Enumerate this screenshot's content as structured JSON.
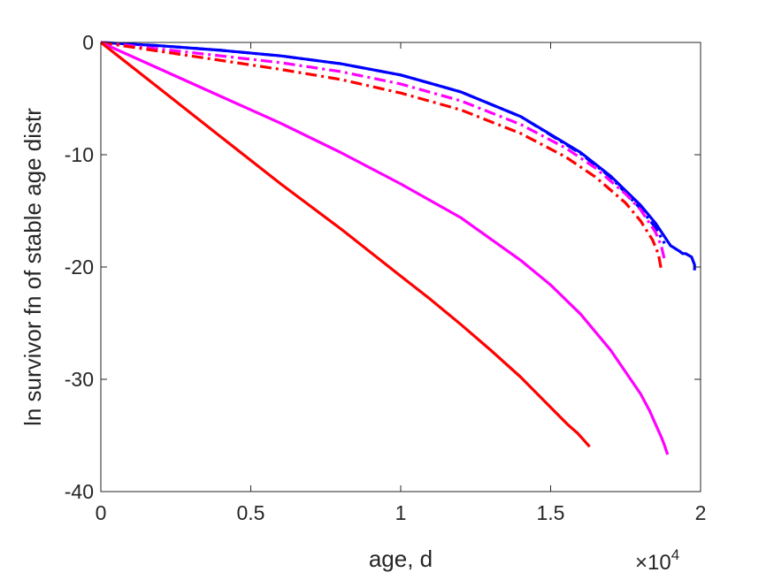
{
  "chart_data": {
    "type": "line",
    "title": "",
    "xlabel": "age, d",
    "ylabel": "ln survivor fn of stable age distr",
    "x_exponent_label": {
      "base": "×10",
      "power": "4"
    },
    "xlim": [
      0,
      20000
    ],
    "ylim": [
      -40,
      0
    ],
    "xticks": [
      0,
      5000,
      10000,
      15000,
      20000
    ],
    "xtick_labels": [
      "0",
      "0.5",
      "1",
      "1.5",
      "2"
    ],
    "yticks": [
      0,
      -10,
      -20,
      -30,
      -40
    ],
    "ytick_labels": [
      "0",
      "-10",
      "-20",
      "-30",
      "-40"
    ],
    "grid": false,
    "series": [
      {
        "color": "#0000ff",
        "style": "solid",
        "x": [
          0,
          2000,
          4000,
          6000,
          8000,
          10000,
          12000,
          14000,
          16000,
          17000,
          18000,
          18500,
          19000,
          19300,
          19400,
          19500,
          19700,
          19800,
          19800
        ],
        "y": [
          0,
          -0.3,
          -0.7,
          -1.2,
          -1.9,
          -2.9,
          -4.4,
          -6.6,
          -9.8,
          -11.9,
          -14.5,
          -16.1,
          -18.1,
          -18.6,
          -18.8,
          -18.8,
          -19.1,
          -19.8,
          -20.3
        ]
      },
      {
        "color": "#0000ff",
        "style": "dashdot",
        "x": [
          0,
          2000,
          4000,
          6000,
          8000,
          10000,
          12000,
          14000,
          16000,
          17000,
          18000,
          18500,
          18800
        ],
        "y": [
          0,
          -0.3,
          -0.7,
          -1.2,
          -1.9,
          -2.9,
          -4.4,
          -6.6,
          -9.9,
          -12.0,
          -14.8,
          -16.5,
          -17.9
        ]
      },
      {
        "color": "#ff00ff",
        "style": "dashdot",
        "x": [
          0,
          2000,
          4000,
          6000,
          8000,
          10000,
          12000,
          14000,
          15500,
          16500,
          17500,
          18000,
          18500,
          18700,
          18800
        ],
        "y": [
          0,
          -0.6,
          -1.2,
          -1.8,
          -2.6,
          -3.7,
          -5.2,
          -7.3,
          -9.4,
          -11.2,
          -13.5,
          -14.9,
          -16.9,
          -18.2,
          -19.4
        ]
      },
      {
        "color": "#ff0000",
        "style": "dashdot",
        "x": [
          0,
          2000,
          4000,
          6000,
          8000,
          10000,
          12000,
          14000,
          15500,
          16500,
          17500,
          18000,
          18400,
          18600,
          18700
        ],
        "y": [
          0,
          -0.8,
          -1.6,
          -2.4,
          -3.3,
          -4.5,
          -6.0,
          -8.1,
          -10.2,
          -12.0,
          -14.3,
          -15.9,
          -17.6,
          -18.9,
          -20.4
        ]
      },
      {
        "color": "#ff00ff",
        "style": "solid",
        "x": [
          0,
          2000,
          4000,
          6000,
          8000,
          10000,
          12000,
          14000,
          15000,
          16000,
          17000,
          18000,
          18300,
          18500,
          18700,
          18800,
          18900
        ],
        "y": [
          0,
          -2.4,
          -4.8,
          -7.2,
          -9.8,
          -12.6,
          -15.6,
          -19.4,
          -21.6,
          -24.2,
          -27.4,
          -31.3,
          -32.8,
          -34.0,
          -35.2,
          -35.9,
          -36.7
        ]
      },
      {
        "color": "#ff0000",
        "style": "solid",
        "x": [
          0,
          2000,
          4000,
          6000,
          8000,
          10000,
          11000,
          12000,
          13000,
          14000,
          15000,
          15600,
          15900,
          16100,
          16200,
          16300
        ],
        "y": [
          0,
          -4.2,
          -8.4,
          -12.6,
          -16.6,
          -20.8,
          -22.9,
          -25.1,
          -27.4,
          -29.8,
          -32.5,
          -34.1,
          -34.8,
          -35.4,
          -35.7,
          -36.0
        ]
      }
    ]
  }
}
